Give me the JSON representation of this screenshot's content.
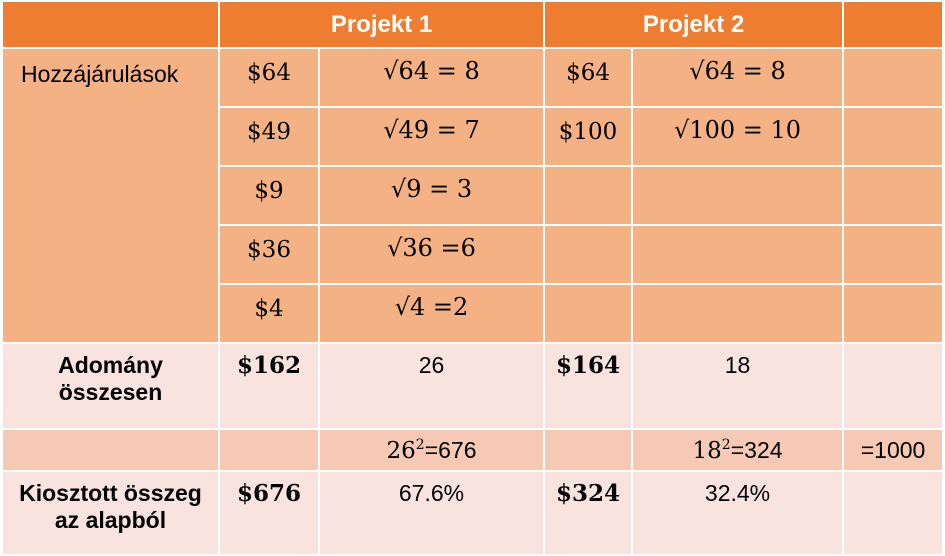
{
  "header": {
    "project1": "Projekt 1",
    "project2": "Projekt 2"
  },
  "contributions": {
    "label": "Hozzájárulások",
    "rows": [
      {
        "p1_amount": "$64",
        "p1_sqrt": "√64 = 8",
        "p2_amount": "$64",
        "p2_sqrt": "√64 = 8"
      },
      {
        "p1_amount": "$49",
        "p1_sqrt": "√49 = 7",
        "p2_amount": "$100",
        "p2_sqrt": "√100 = 10"
      },
      {
        "p1_amount": "$9",
        "p1_sqrt": "√9 = 3",
        "p2_amount": "",
        "p2_sqrt": ""
      },
      {
        "p1_amount": "$36",
        "p1_sqrt": "√36 =6",
        "p2_amount": "",
        "p2_sqrt": ""
      },
      {
        "p1_amount": "$4",
        "p1_sqrt": "√4 =2",
        "p2_amount": "",
        "p2_sqrt": ""
      }
    ]
  },
  "donation_total": {
    "label_line1": "Adomány",
    "label_line2": "összesen",
    "p1_amount": "$162",
    "p1_sqrt_sum": "26",
    "p2_amount": "$164",
    "p2_sqrt_sum": "18"
  },
  "squares": {
    "p1_base": "26",
    "p1_exp": "2",
    "p1_result": "=676",
    "p2_base": "18",
    "p2_exp": "2",
    "p2_result": "=324",
    "total": "=1000"
  },
  "allocation": {
    "label_line1": "Kiosztott összeg",
    "label_line2": "az alapból",
    "p1_amount": "$676",
    "p1_percent": "67.6%",
    "p2_amount": "$324",
    "p2_percent": "32.4%"
  }
}
